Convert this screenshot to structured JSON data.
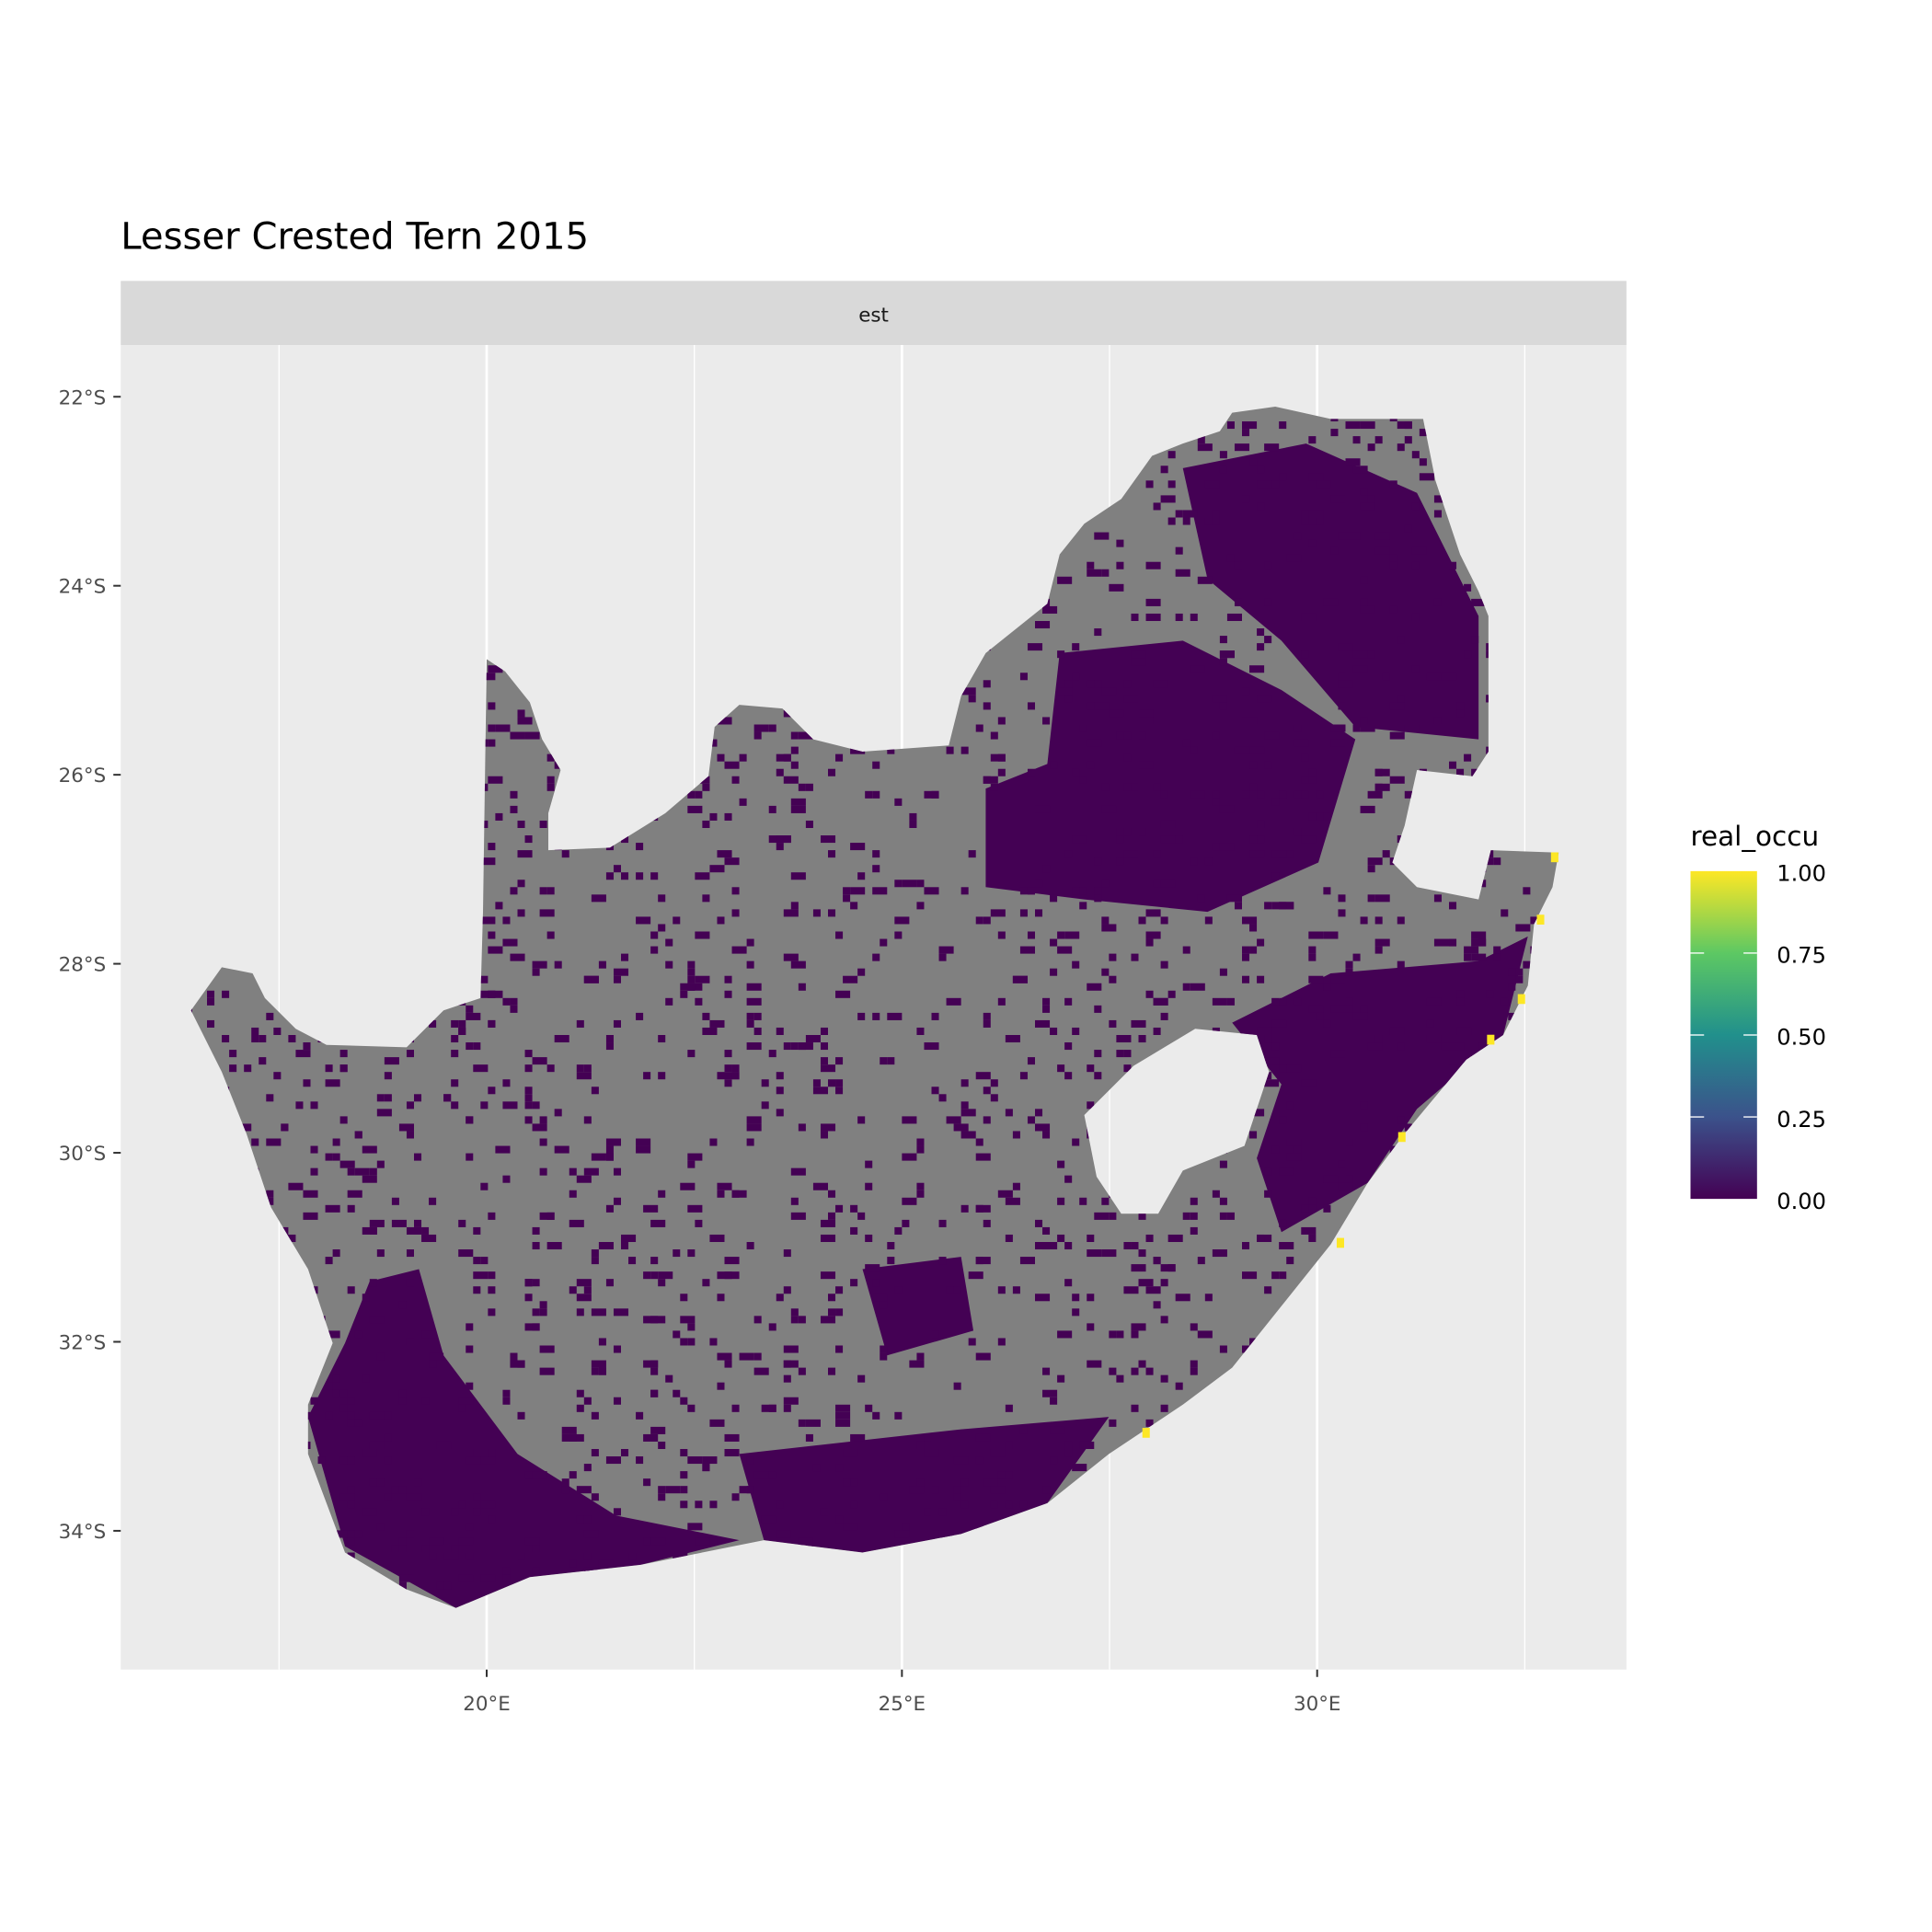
{
  "chart_data": {
    "type": "heatmap",
    "title": "Lesser Crested Tern 2015",
    "facet_label": "est",
    "x_ticks": [
      "20°E",
      "25°E",
      "30°E"
    ],
    "x_tick_values": [
      20,
      25,
      30
    ],
    "y_ticks": [
      "22°S",
      "24°S",
      "26°S",
      "28°S",
      "30°S",
      "32°S",
      "34°S"
    ],
    "y_tick_values": [
      -22,
      -24,
      -26,
      -28,
      -30,
      -32,
      -34
    ],
    "xlim": [
      15.6,
      33.8
    ],
    "ylim": [
      -35.4,
      -21.4
    ],
    "grid": true,
    "legend": {
      "title": "real_occu",
      "position": "right",
      "labels": [
        "1.00",
        "0.75",
        "0.50",
        "0.25",
        "0.00"
      ],
      "range": [
        0,
        1
      ],
      "palette": "viridis",
      "colors": [
        "#440154",
        "#3b528b",
        "#21908c",
        "#5dc863",
        "#fde725"
      ]
    },
    "na_color": "#808080",
    "dominant_value": 0.0,
    "high_occupancy_cells": [
      {
        "lon": 32.86,
        "lat": -26.86,
        "value": 1.0
      },
      {
        "lon": 32.69,
        "lat": -27.52,
        "value": 1.0
      },
      {
        "lon": 32.46,
        "lat": -28.36,
        "value": 1.0
      },
      {
        "lon": 32.09,
        "lat": -28.79,
        "value": 1.0
      },
      {
        "lon": 31.02,
        "lat": -29.82,
        "value": 1.0
      },
      {
        "lon": 30.28,
        "lat": -30.94,
        "value": 1.0
      },
      {
        "lon": 27.94,
        "lat": -32.95,
        "value": 1.0
      }
    ]
  }
}
